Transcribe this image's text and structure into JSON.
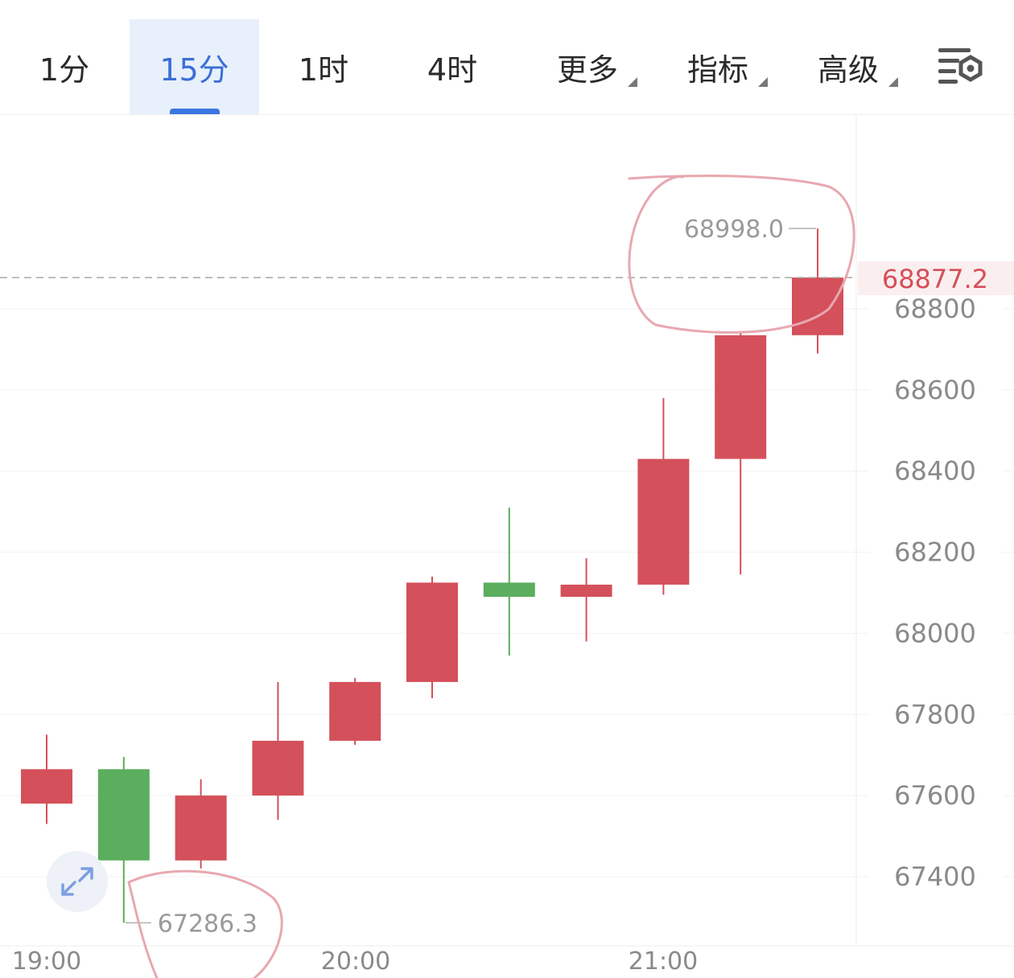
{
  "toolbar": {
    "tabs": [
      {
        "label": "1分",
        "active": false
      },
      {
        "label": "15分",
        "active": true
      },
      {
        "label": "1时",
        "active": false
      },
      {
        "label": "4时",
        "active": false
      },
      {
        "label": "更多",
        "active": false,
        "dropdown": true
      },
      {
        "label": "指标",
        "active": false,
        "dropdown": true
      },
      {
        "label": "高级",
        "active": false,
        "dropdown": true
      }
    ],
    "settings_icon": "chart-settings-icon"
  },
  "colors": {
    "up": "#d4505a",
    "down": "#5aae5e",
    "accent": "#3b76e0",
    "current_price": "#d4505a",
    "annotation": "#e8a8b0"
  },
  "chart_data": {
    "type": "candlestick",
    "interval": "15分",
    "ylim": [
      67220,
      69230
    ],
    "yticks": [
      "68800",
      "68600",
      "68400",
      "68200",
      "68000",
      "67800",
      "67600",
      "67400"
    ],
    "xticks": [
      "19:00",
      "20:00",
      "21:00"
    ],
    "candles": [
      {
        "open": 67580,
        "close": 67665,
        "high": 67750,
        "low": 67530
      },
      {
        "open": 67665,
        "close": 67440,
        "high": 67695,
        "low": 67286.3
      },
      {
        "open": 67440,
        "close": 67600,
        "high": 67640,
        "low": 67420
      },
      {
        "open": 67600,
        "close": 67735,
        "high": 67880,
        "low": 67540
      },
      {
        "open": 67735,
        "close": 67880,
        "high": 67890,
        "low": 67725
      },
      {
        "open": 67880,
        "close": 68125,
        "high": 68140,
        "low": 67840
      },
      {
        "open": 68125,
        "close": 68090,
        "high": 68310,
        "low": 67945
      },
      {
        "open": 68090,
        "close": 68120,
        "high": 68185,
        "low": 67980
      },
      {
        "open": 68120,
        "close": 68430,
        "high": 68580,
        "low": 68095
      },
      {
        "open": 68430,
        "close": 68735,
        "high": 68745,
        "low": 68145
      },
      {
        "open": 68735,
        "close": 68877.2,
        "high": 68998.0,
        "low": 68690
      }
    ],
    "current_price": "68877.2",
    "high_label": "68998.0",
    "low_label": "67286.3"
  }
}
